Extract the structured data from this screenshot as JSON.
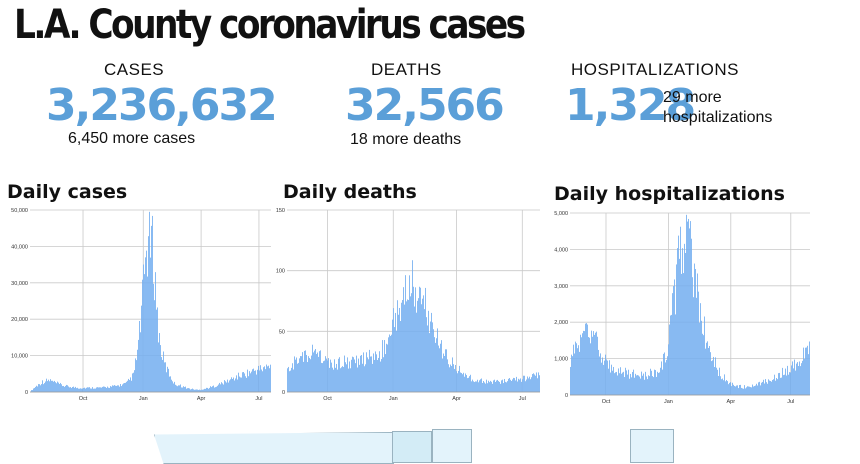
{
  "header": {
    "title": "L.A. County coronavirus cases"
  },
  "stats": [
    {
      "label": "CASES",
      "value": "3,236,632",
      "change": "6,450 more cases"
    },
    {
      "label": "DEATHS",
      "value": "32,566",
      "change": "18 more deaths"
    },
    {
      "label": "HOSPITALIZATIONS",
      "value": "1,328",
      "change_line1": "29 more",
      "change_line2": "hospitalizations"
    }
  ],
  "colors": {
    "accent": "#5b9fd8",
    "bar": "#74aef0",
    "grid": "#c9c9c9",
    "map": "#e3f3fb"
  },
  "chart_data": [
    {
      "type": "bar",
      "title": "Daily cases",
      "ylim": [
        0,
        50000
      ],
      "yticks": [
        0,
        10000,
        20000,
        30000,
        40000,
        50000
      ],
      "ytick_labels": [
        "0",
        "10,000",
        "20,000",
        "30,000",
        "40,000",
        "50,000"
      ],
      "xticks": [
        {
          "label": "Oct",
          "pos": 0.22
        },
        {
          "label": "Jan",
          "pos": 0.47
        },
        {
          "label": "Apr",
          "pos": 0.71
        },
        {
          "label": "Jul",
          "pos": 0.95
        }
      ],
      "keyframes": [
        [
          0,
          200
        ],
        [
          0.02,
          1500
        ],
        [
          0.05,
          3000
        ],
        [
          0.08,
          3500
        ],
        [
          0.1,
          2800
        ],
        [
          0.14,
          1800
        ],
        [
          0.2,
          1200
        ],
        [
          0.3,
          1300
        ],
        [
          0.36,
          1800
        ],
        [
          0.4,
          2500
        ],
        [
          0.43,
          5000
        ],
        [
          0.45,
          14000
        ],
        [
          0.47,
          30000
        ],
        [
          0.48,
          40000
        ],
        [
          0.49,
          44000
        ],
        [
          0.5,
          45000
        ],
        [
          0.51,
          42000
        ],
        [
          0.52,
          33000
        ],
        [
          0.53,
          21000
        ],
        [
          0.54,
          14000
        ],
        [
          0.56,
          8000
        ],
        [
          0.6,
          2500
        ],
        [
          0.66,
          1000
        ],
        [
          0.7,
          600
        ],
        [
          0.73,
          1000
        ],
        [
          0.77,
          1800
        ],
        [
          0.82,
          3200
        ],
        [
          0.86,
          4500
        ],
        [
          0.9,
          5500
        ],
        [
          0.94,
          6500
        ],
        [
          1,
          7500
        ]
      ]
    },
    {
      "type": "bar",
      "title": "Daily deaths",
      "ylim": [
        0,
        150
      ],
      "yticks": [
        0,
        50,
        100,
        150
      ],
      "ytick_labels": [
        "0",
        "50",
        "100",
        "150"
      ],
      "xticks": [
        {
          "label": "Oct",
          "pos": 0.16
        },
        {
          "label": "Jan",
          "pos": 0.42
        },
        {
          "label": "Apr",
          "pos": 0.67
        },
        {
          "label": "Jul",
          "pos": 0.93
        }
      ],
      "keyframes": [
        [
          0,
          20
        ],
        [
          0.04,
          28
        ],
        [
          0.08,
          35
        ],
        [
          0.12,
          34
        ],
        [
          0.16,
          25
        ],
        [
          0.2,
          25
        ],
        [
          0.26,
          28
        ],
        [
          0.32,
          30
        ],
        [
          0.36,
          32
        ],
        [
          0.4,
          45
        ],
        [
          0.44,
          75
        ],
        [
          0.47,
          92
        ],
        [
          0.5,
          95
        ],
        [
          0.53,
          88
        ],
        [
          0.56,
          70
        ],
        [
          0.6,
          45
        ],
        [
          0.64,
          28
        ],
        [
          0.7,
          15
        ],
        [
          0.76,
          10
        ],
        [
          0.82,
          9
        ],
        [
          0.88,
          10
        ],
        [
          0.94,
          12
        ],
        [
          1,
          15
        ]
      ]
    },
    {
      "type": "bar",
      "title": "Daily hospitalizations",
      "ylim": [
        0,
        5000
      ],
      "yticks": [
        0,
        1000,
        2000,
        3000,
        4000,
        5000
      ],
      "ytick_labels": [
        "0",
        "1,000",
        "2,000",
        "3,000",
        "4,000",
        "5,000"
      ],
      "xticks": [
        {
          "label": "Oct",
          "pos": 0.15
        },
        {
          "label": "Jan",
          "pos": 0.41
        },
        {
          "label": "Apr",
          "pos": 0.67
        },
        {
          "label": "Jul",
          "pos": 0.92
        }
      ],
      "keyframes": [
        [
          0,
          1100
        ],
        [
          0.02,
          1450
        ],
        [
          0.05,
          1700
        ],
        [
          0.07,
          1750
        ],
        [
          0.1,
          1650
        ],
        [
          0.12,
          1400
        ],
        [
          0.15,
          950
        ],
        [
          0.2,
          700
        ],
        [
          0.25,
          620
        ],
        [
          0.3,
          580
        ],
        [
          0.35,
          650
        ],
        [
          0.38,
          800
        ],
        [
          0.41,
          1500
        ],
        [
          0.44,
          3200
        ],
        [
          0.46,
          4500
        ],
        [
          0.47,
          4800
        ],
        [
          0.49,
          4600
        ],
        [
          0.52,
          3600
        ],
        [
          0.55,
          2300
        ],
        [
          0.58,
          1300
        ],
        [
          0.62,
          700
        ],
        [
          0.67,
          320
        ],
        [
          0.72,
          230
        ],
        [
          0.77,
          270
        ],
        [
          0.82,
          400
        ],
        [
          0.87,
          600
        ],
        [
          0.92,
          800
        ],
        [
          0.96,
          1050
        ],
        [
          1,
          1330
        ]
      ]
    }
  ]
}
